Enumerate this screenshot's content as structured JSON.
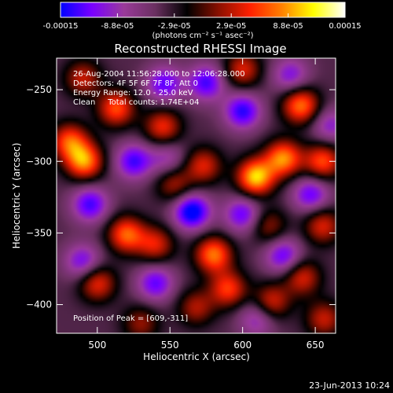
{
  "chart_data": {
    "type": "heatmap",
    "title": "Reconstructed RHESSI Image",
    "xlabel": "Heliocentric X (arcsec)",
    "ylabel": "Heliocentric Y (arcsec)",
    "xlim": [
      472,
      664
    ],
    "ylim": [
      -420,
      -228
    ],
    "x_ticks": [
      "500",
      "550",
      "600",
      "650"
    ],
    "y_ticks": [
      "-250",
      "-300",
      "-350",
      "-400"
    ],
    "colorbar": {
      "range": [
        -0.00015,
        0.00015
      ],
      "tick_labels": [
        "-0.00015",
        "-8.8e-05",
        "-2.9e-05",
        "2.9e-05",
        "8.8e-05",
        "0.00015"
      ],
      "unit_label": "(photons cm⁻² s⁻¹ asec⁻²)"
    },
    "annotations": {
      "time": "26-Aug-2004 11:56:28.000 to 12:06:28.000",
      "detectors": "Detectors: 4F 5F 6F 7F 8F, Att 0",
      "energy": "Energy Range: 12.0 - 25.0 keV",
      "clean": "Clean     Total counts: 1.74E+04",
      "peak": "Position of Peak = [609,-311]"
    },
    "peak_position": [
      609,
      -311
    ],
    "colormap": [
      "#0000ff",
      "#7a00ff",
      "#9a3a9a",
      "#6a3060",
      "#000000",
      "#8a1000",
      "#ff2000",
      "#ff8000",
      "#ffff00",
      "#ffffff"
    ],
    "blobs": [
      {
        "x": 609,
        "y": -311,
        "intensity": 1.0
      },
      {
        "x": 628,
        "y": -298,
        "intensity": 0.85
      },
      {
        "x": 640,
        "y": -261,
        "intensity": 0.8
      },
      {
        "x": 655,
        "y": -300,
        "intensity": 0.7
      },
      {
        "x": 491,
        "y": -300,
        "intensity": 0.85
      },
      {
        "x": 481,
        "y": -286,
        "intensity": 0.7
      },
      {
        "x": 513,
        "y": -263,
        "intensity": 0.7
      },
      {
        "x": 545,
        "y": -276,
        "intensity": 0.6
      },
      {
        "x": 573,
        "y": -303,
        "intensity": 0.55
      },
      {
        "x": 553,
        "y": -316,
        "intensity": 0.45
      },
      {
        "x": 520,
        "y": -351,
        "intensity": 0.75
      },
      {
        "x": 540,
        "y": -358,
        "intensity": 0.55
      },
      {
        "x": 580,
        "y": -365,
        "intensity": 0.8
      },
      {
        "x": 590,
        "y": -389,
        "intensity": 0.65
      },
      {
        "x": 500,
        "y": -385,
        "intensity": 0.6
      },
      {
        "x": 620,
        "y": -398,
        "intensity": 0.55
      },
      {
        "x": 641,
        "y": -381,
        "intensity": 0.55
      },
      {
        "x": 655,
        "y": -345,
        "intensity": 0.55
      },
      {
        "x": 618,
        "y": -345,
        "intensity": 0.4
      },
      {
        "x": 568,
        "y": -402,
        "intensity": 0.45
      },
      {
        "x": 530,
        "y": -413,
        "intensity": 0.4
      },
      {
        "x": 490,
        "y": -242,
        "intensity": 0.5
      },
      {
        "x": 600,
        "y": -236,
        "intensity": 0.55
      },
      {
        "x": 656,
        "y": -410,
        "intensity": 0.5
      },
      {
        "x": 600,
        "y": -265,
        "intensity": -0.65
      },
      {
        "x": 575,
        "y": -245,
        "intensity": -0.6
      },
      {
        "x": 546,
        "y": -246,
        "intensity": -0.55
      },
      {
        "x": 525,
        "y": -300,
        "intensity": -0.6
      },
      {
        "x": 565,
        "y": -335,
        "intensity": -0.8
      },
      {
        "x": 600,
        "y": -337,
        "intensity": -0.55
      },
      {
        "x": 495,
        "y": -330,
        "intensity": -0.6
      },
      {
        "x": 490,
        "y": -370,
        "intensity": -0.5
      },
      {
        "x": 540,
        "y": -385,
        "intensity": -0.55
      },
      {
        "x": 628,
        "y": -366,
        "intensity": -0.55
      },
      {
        "x": 647,
        "y": -323,
        "intensity": -0.55
      },
      {
        "x": 633,
        "y": -240,
        "intensity": -0.45
      },
      {
        "x": 610,
        "y": -410,
        "intensity": -0.4
      },
      {
        "x": 548,
        "y": -298,
        "intensity": -0.35
      },
      {
        "x": 660,
        "y": -275,
        "intensity": -0.4
      }
    ]
  },
  "footer": {
    "date": "23-Jun-2013 10:24"
  }
}
